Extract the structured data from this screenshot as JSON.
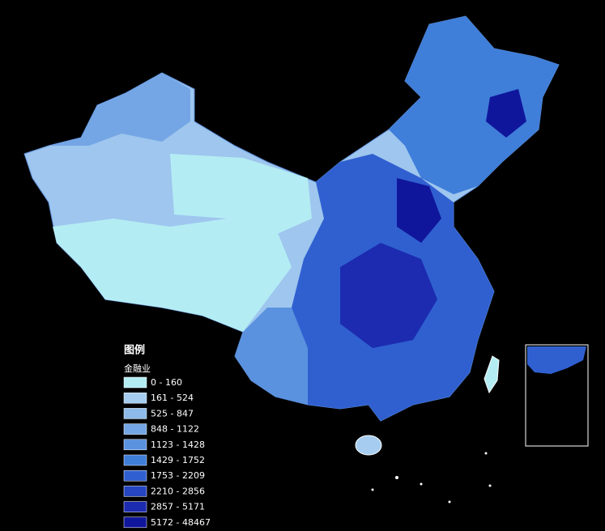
{
  "legend": {
    "title": "图例",
    "subtitle": "金融业",
    "items": [
      {
        "label": "0 - 160",
        "color": "#b4ecf3"
      },
      {
        "label": "161 - 524",
        "color": "#a6cdef"
      },
      {
        "label": "525 - 847",
        "color": "#8dbaea"
      },
      {
        "label": "848 - 1122",
        "color": "#74a6e5"
      },
      {
        "label": "1123 - 1428",
        "color": "#5a92df"
      },
      {
        "label": "1429 - 1752",
        "color": "#3f7ed9"
      },
      {
        "label": "1753 - 2209",
        "color": "#3060d0"
      },
      {
        "label": "2210 - 2856",
        "color": "#2645c1"
      },
      {
        "label": "2857 - 5171",
        "color": "#1c2bb0"
      },
      {
        "label": "5172 - 48467",
        "color": "#10169b"
      }
    ]
  }
}
